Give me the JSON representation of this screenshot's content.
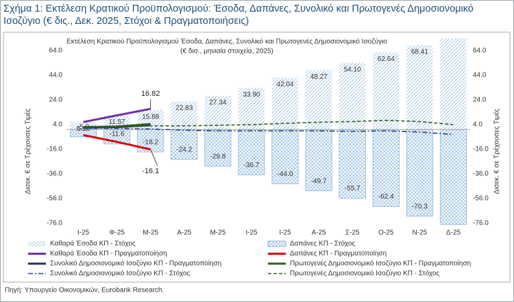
{
  "chart_data": {
    "type": "bar",
    "title": "Σχήμα 1: Εκτέλεση Κρατικού Προϋπολογισμού: Έσοδα, Δαπάνες, Συνολικό και Πρωτογενές Δημοσιονομικό Ισοζύγιο (€ δις., Δεκ. 2025, Στόχοι & Πραγματοποιήσεις)",
    "subtitle": "Εκτέλεση Κρατικού Προϋπολογισμού Έσοδα, Δαπάνες, Συνολικό και Πρωτογενές Δημοσιονομικό Ισοζύγιο",
    "subtitle2": "(€ δισ., μηνιαία στοιχεία, 2025)",
    "ylabel": "Δισεκ. € σε Τρέχουσες Τιμές",
    "y2label": "Δισεκ. € σε Τρέχουσες Τιμές",
    "source": "Πηγή: Υπουργείο Οικονομικών, Eurobank Research.",
    "categories": [
      "Ι-25",
      "Φ-25",
      "Μ-25",
      "Α-25",
      "Μ-25",
      "Ι-25",
      "Ι-25",
      "Α-25",
      "Σ-25",
      "Ο-25",
      "Ν-25",
      "Δ-25"
    ],
    "ylim": [
      -77,
      74
    ],
    "yticks": [
      {
        "value": -76,
        "label": "-76.0"
      },
      {
        "value": -56,
        "label": "-56.0"
      },
      {
        "value": -36,
        "label": "-36.0"
      },
      {
        "value": -16,
        "label": "-16.0"
      },
      {
        "value": 4,
        "label": "4.0"
      },
      {
        "value": 24,
        "label": "24.0"
      },
      {
        "value": 44,
        "label": "44.0"
      },
      {
        "value": 64,
        "label": "64.0"
      }
    ],
    "y2lim": [
      -77,
      74
    ],
    "y2ticks": [
      {
        "value": -76,
        "label": "-76.0"
      },
      {
        "value": -56,
        "label": "-56.0"
      },
      {
        "value": -36,
        "label": "-36.0"
      },
      {
        "value": -16,
        "label": "-16.0"
      },
      {
        "value": 4,
        "label": "4.0"
      },
      {
        "value": 24,
        "label": "24.0"
      },
      {
        "value": 44,
        "label": "44.0"
      },
      {
        "value": 64,
        "label": "64.0"
      }
    ],
    "series": [
      {
        "name": "Καθαρά Έσοδα ΚΠ - Στόχος",
        "type": "bar",
        "pattern": "diagonal",
        "color": "#9dc3e6",
        "values": [
          6.1,
          11.57,
          15.88,
          22.83,
          27.34,
          33.9,
          42.04,
          48.27,
          54.1,
          62.64,
          68.41,
          74
        ],
        "value_labels": [
          "6.10",
          "11.57",
          "15.88",
          "22.83",
          "27.34",
          "33.90",
          "42.04",
          "48.27",
          "54.10",
          "62.64",
          "68.41",
          null
        ]
      },
      {
        "name": "Δαπάνες ΚΠ - Στόχος",
        "type": "bar",
        "pattern": "cross",
        "color": "#9dc3e6",
        "values": [
          -5.9,
          -11.6,
          -18.2,
          -24.2,
          -29.8,
          -36.7,
          -44.0,
          -49.7,
          -55.7,
          -62.4,
          -70.3,
          -77
        ],
        "value_labels": [
          "-5.9",
          "-11.6",
          "-18.2",
          "-24.2",
          "-29.8",
          "-36.7",
          "-44.0",
          "-49.7",
          "-55.7",
          "-62.4",
          "-70.3",
          null
        ]
      },
      {
        "name": "Καθαρά Έσοδα ΚΠ - Πραγματοποίηση",
        "type": "line",
        "style": "solid",
        "color": "#7030a0",
        "values": [
          6.1,
          11.5,
          16.82,
          null,
          null,
          null,
          null,
          null,
          null,
          null,
          null,
          null
        ],
        "value_labels": [
          null,
          null,
          "16.82",
          null,
          null,
          null,
          null,
          null,
          null,
          null,
          null,
          null
        ]
      },
      {
        "name": "Δαπάνες ΚΠ - Πραγματοποίηση",
        "type": "line",
        "style": "solid",
        "color": "#e00000",
        "values": [
          -4.5,
          -10,
          -16.1,
          null,
          null,
          null,
          null,
          null,
          null,
          null,
          null,
          null
        ],
        "value_labels": [
          null,
          null,
          "-16.1",
          null,
          null,
          null,
          null,
          null,
          null,
          null,
          null,
          null
        ]
      },
      {
        "name": "Συνολικό Δημοσιονομικό Ισοζύγιο ΚΠ - Πραγματοποίηση",
        "type": "line",
        "style": "solid",
        "color": "#1f2d6b",
        "values": [
          1.5,
          2,
          3.5,
          null,
          null,
          null,
          null,
          null,
          null,
          null,
          null,
          null
        ]
      },
      {
        "name": "Πρωτογενές Δημοσιονομικό Ισοζύγιο ΚΠ - Πραγματοποίηση",
        "type": "line",
        "style": "solid",
        "color": "#2e5e1e",
        "values": [
          2,
          2.5,
          4.5,
          null,
          null,
          null,
          null,
          null,
          null,
          null,
          null,
          null
        ]
      },
      {
        "name": "Συνολικό Δημοσιονομικό Ισοζύγιο ΚΠ - Στόχος",
        "type": "line",
        "style": "dashdot",
        "color": "#1f3f8f",
        "values": [
          1,
          1,
          0.5,
          -0.5,
          -1,
          -1,
          -1,
          -1,
          -1.5,
          -1,
          -2,
          -4
        ]
      },
      {
        "name": "Πρωτογενές Δημοσιονομικό Ισοζύγιο ΚΠ - Στόχος",
        "type": "line",
        "style": "dashed",
        "color": "#2e5e1e",
        "values": [
          2,
          2,
          3,
          3,
          3.5,
          4,
          5,
          6,
          6.5,
          7.5,
          6.5,
          4
        ]
      }
    ]
  }
}
